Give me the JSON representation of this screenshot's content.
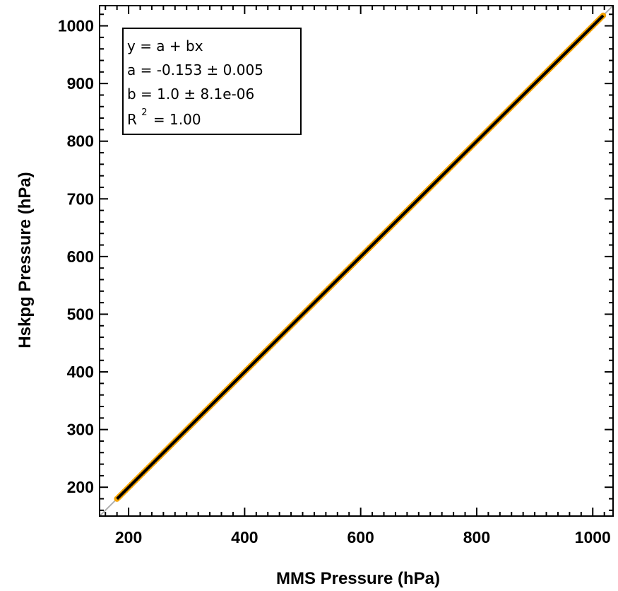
{
  "chart_data": {
    "type": "scatter",
    "xlabel": "MMS Pressure (hPa)",
    "ylabel": "Hskpg Pressure (hPa)",
    "xlim": [
      150,
      1035
    ],
    "ylim": [
      150,
      1035
    ],
    "x_ticks": [
      200,
      400,
      600,
      800,
      1000
    ],
    "y_ticks": [
      200,
      300,
      400,
      500,
      600,
      700,
      800,
      900,
      1000
    ],
    "x_tick_labels": [
      "200",
      "400",
      "600",
      "800",
      "1000"
    ],
    "y_tick_labels": [
      "200",
      "300",
      "400",
      "500",
      "600",
      "700",
      "800",
      "900",
      "1000"
    ],
    "grid": false,
    "points": {
      "x_start": 180,
      "x_end": 1018
    },
    "fit": {
      "a": -0.153,
      "b": 1.0
    },
    "one_to_one_line": true,
    "colors": {
      "points": "#f5a300",
      "fit_line": "#000000",
      "one_to_one": "#b0b0b0"
    },
    "legend": {
      "placement": "top-left",
      "line1": "y = a + bx",
      "line2": "a = -0.153 ± 0.005",
      "line3": "b = 1.0 ± 8.1e-06",
      "r2_prefix": "R",
      "r2_sup": "2",
      "r2_value": " = 1.00"
    }
  }
}
